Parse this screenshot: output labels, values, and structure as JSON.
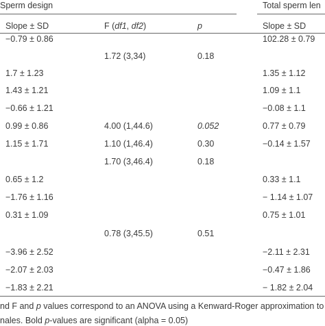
{
  "header": {
    "groups": [
      "Sperm design",
      "Total sperm len"
    ],
    "columns": [
      [
        {
          "text": "Slope ± SD",
          "italic": false
        }
      ],
      [
        {
          "text": "F (",
          "italic": false
        },
        {
          "text": "df1",
          "italic": true
        },
        {
          "text": ", ",
          "italic": false
        },
        {
          "text": "df2",
          "italic": true
        },
        {
          "text": ")",
          "italic": false
        }
      ],
      [
        {
          "text": "p",
          "italic": true
        }
      ],
      [
        {
          "text": "Slope ± SD",
          "italic": false
        }
      ]
    ]
  },
  "rows": [
    [
      "−0.79 ± 0.86",
      null,
      null,
      "102.28 ± 0.79"
    ],
    [
      null,
      "1.72 (3,34)",
      "0.18",
      null
    ],
    [
      "1.7 ± 1.23",
      null,
      null,
      "1.35 ± 1.12"
    ],
    [
      "1.43 ± 1.21",
      null,
      null,
      "1.09 ± 1.1"
    ],
    [
      "−0.66 ± 1.21",
      null,
      null,
      "−0.08 ± 1.1"
    ],
    [
      "0.99 ± 0.86",
      "4.00 (1,44.6)",
      {
        "text": "0.052",
        "italic": true
      },
      "0.77 ± 0.79"
    ],
    [
      "1.15 ± 1.71",
      "1.10 (1,46.4)",
      "0.30",
      "−0.14 ± 1.57"
    ],
    [
      null,
      "1.70 (3,46.4)",
      "0.18",
      null
    ],
    [
      "0.65 ± 1.2",
      null,
      null,
      "0.33 ± 1.1"
    ],
    [
      "−1.76 ± 1.16",
      null,
      null,
      "− 1.14 ± 1.07"
    ],
    [
      "0.31 ± 1.09",
      null,
      null,
      "0.75 ± 1.01"
    ],
    [
      null,
      "0.78 (3,45.5)",
      "0.51",
      null
    ],
    [
      "−3.96 ± 2.52",
      null,
      null,
      "−2.11 ± 2.31"
    ],
    [
      "−2.07 ± 2.03",
      null,
      null,
      "−0.47 ± 1.86"
    ],
    [
      "−1.83 ± 2.21",
      null,
      null,
      "− 1.82 ± 2.04"
    ]
  ],
  "footnote": [
    [
      {
        "text": "nd F and ",
        "italic": false
      },
      {
        "text": "p",
        "italic": true
      },
      {
        "text": " values correspond to an ANOVA using a Kenward-Roger approximation to",
        "italic": false
      }
    ],
    [
      {
        "text": "nales. Bold ",
        "italic": false
      },
      {
        "text": "p",
        "italic": true
      },
      {
        "text": "-values are significant (alpha = 0.05)",
        "italic": false
      }
    ]
  ]
}
